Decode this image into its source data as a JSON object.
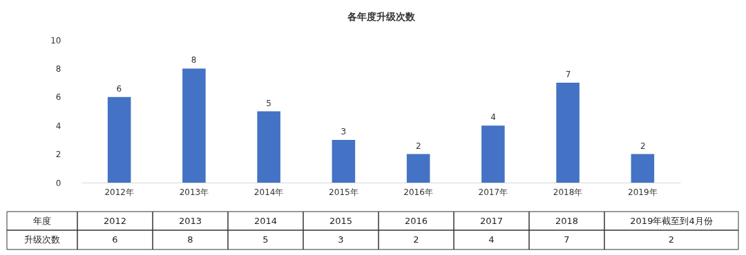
{
  "chart_data": {
    "type": "bar",
    "title": "各年度升级次数",
    "categories": [
      "2012年",
      "2013年",
      "2014年",
      "2015年",
      "2016年",
      "2017年",
      "2018年",
      "2019年"
    ],
    "values": [
      6,
      8,
      5,
      3,
      2,
      4,
      7,
      2
    ],
    "color": "#4472c4",
    "ylim": [
      0,
      10
    ],
    "yticks": [
      0,
      2,
      4,
      6,
      8,
      10
    ],
    "grid": false,
    "data_labels": true,
    "value_labels": [
      "6",
      "8",
      "5",
      "3",
      "2",
      "4",
      "7",
      "2"
    ],
    "annotations": [
      "年度",
      "升级次数",
      "2012",
      "2013",
      "2014",
      "2015",
      "2016",
      "2017",
      "2018",
      "2019年截至到4月份",
      "6",
      "8",
      "5",
      "3",
      "2",
      "4",
      "7",
      "2"
    ]
  }
}
